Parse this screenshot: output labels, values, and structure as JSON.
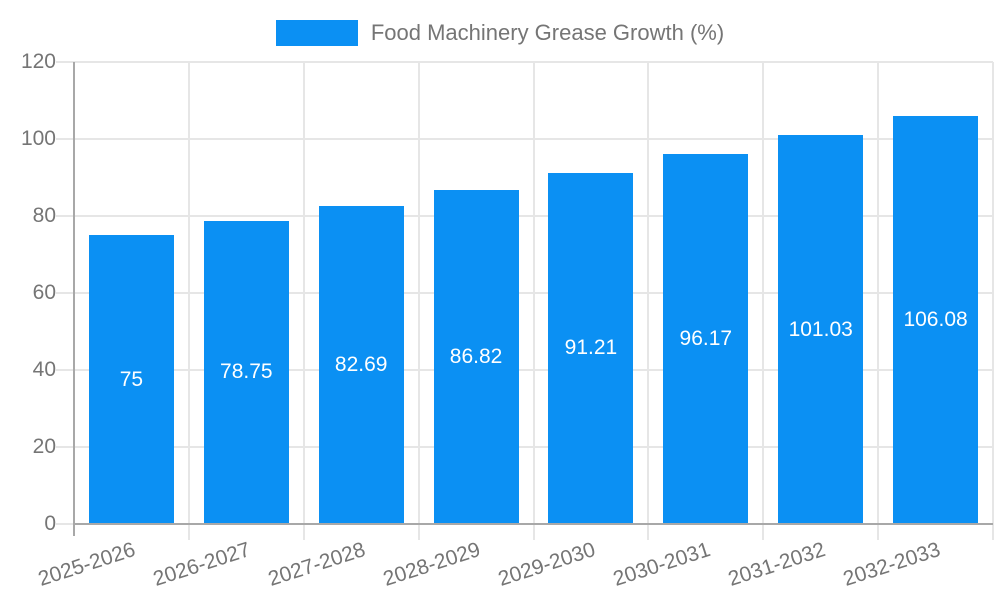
{
  "legend": {
    "label": "Food Machinery Grease Growth (%)"
  },
  "chart_data": {
    "type": "bar",
    "title": "Food Machinery Grease Growth (%)",
    "categories": [
      "2025-2026",
      "2026-2027",
      "2027-2028",
      "2028-2029",
      "2029-2030",
      "2030-2031",
      "2031-2032",
      "2032-2033"
    ],
    "values": [
      75,
      78.75,
      82.69,
      86.82,
      91.21,
      96.17,
      101.03,
      106.08
    ],
    "value_labels": [
      "75",
      "78.75",
      "82.69",
      "86.82",
      "91.21",
      "96.17",
      "101.03",
      "106.08"
    ],
    "xlabel": "",
    "ylabel": "",
    "ylim": [
      0,
      120
    ],
    "yticks": [
      0,
      20,
      40,
      60,
      80,
      100,
      120
    ],
    "grid": true,
    "legend_position": "top",
    "colors": {
      "bar": "#0b90f3",
      "value_label": "#ffffff",
      "axis_text": "#757575",
      "gridline": "#e6e6e6",
      "axis_line": "#a8a8a8"
    }
  }
}
